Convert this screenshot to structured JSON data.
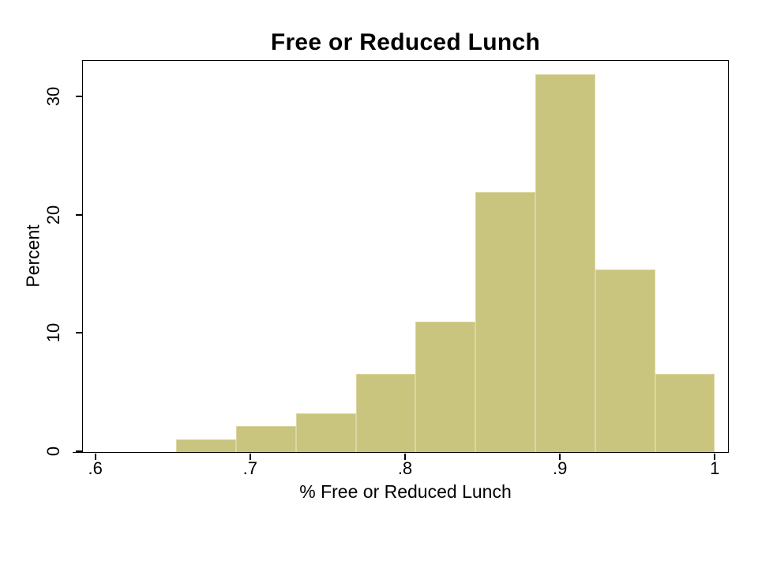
{
  "chart_data": {
    "type": "bar",
    "chart_kind": "histogram",
    "title": "Free or Reduced Lunch",
    "xlabel": "% Free or Reduced Lunch",
    "ylabel": "Percent",
    "x_tick_labels": [
      ".6",
      ".7",
      ".8",
      ".9",
      "1"
    ],
    "x_tick_values": [
      0.6,
      0.7,
      0.8,
      0.9,
      1.0
    ],
    "y_tick_labels": [
      "0",
      "10",
      "20",
      "30"
    ],
    "y_tick_values": [
      0,
      10,
      20,
      30
    ],
    "xlim": [
      0.592,
      1.008
    ],
    "ylim": [
      0,
      33
    ],
    "grid": false,
    "legend": "none",
    "bin_width": 0.0386,
    "bins": [
      {
        "start": 0.6523,
        "end": 0.6909,
        "percent": 1.1
      },
      {
        "start": 0.6909,
        "end": 0.7296,
        "percent": 2.2
      },
      {
        "start": 0.7296,
        "end": 0.7682,
        "percent": 3.3
      },
      {
        "start": 0.7682,
        "end": 0.8068,
        "percent": 6.6
      },
      {
        "start": 0.8068,
        "end": 0.8455,
        "percent": 11.0
      },
      {
        "start": 0.8455,
        "end": 0.8841,
        "percent": 22.0
      },
      {
        "start": 0.8841,
        "end": 0.9227,
        "percent": 31.9
      },
      {
        "start": 0.9227,
        "end": 0.9614,
        "percent": 15.4
      },
      {
        "start": 0.9614,
        "end": 1.0,
        "percent": 6.6
      }
    ],
    "colors": {
      "bar_fill": "#c9c47e",
      "bar_border": "#dcd6a2",
      "axis": "#000000",
      "text": "#000000",
      "background": "#ffffff"
    }
  }
}
